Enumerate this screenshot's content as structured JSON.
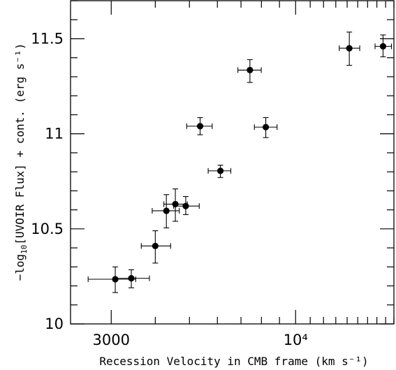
{
  "chart_data": {
    "type": "scatter",
    "title": "",
    "xlabel": "Recession Velocity in CMB frame (km s⁻¹)",
    "ylabel": {
      "prefix": "−log",
      "sub": "10",
      "rest": "[UVOIR Flux] + cont. (erg s⁻¹)"
    },
    "x_scale": "log",
    "xlim": [
      2300,
      19000
    ],
    "ylim": [
      10,
      11.7
    ],
    "x_ticks": [
      {
        "value": 3000,
        "label": "3000"
      },
      {
        "value": 10000,
        "label": "10⁴"
      }
    ],
    "y_ticks": [
      {
        "value": 10,
        "label": "10"
      },
      {
        "value": 10.5,
        "label": "10.5"
      },
      {
        "value": 11,
        "label": "11"
      },
      {
        "value": 11.5,
        "label": "11.5"
      }
    ],
    "points": [
      {
        "x": 3080,
        "xlo": 2580,
        "xhi": 3520,
        "y": 10.235,
        "ylo": 10.165,
        "yhi": 10.3
      },
      {
        "x": 3420,
        "xlo": 3080,
        "xhi": 3850,
        "y": 10.24,
        "ylo": 10.19,
        "yhi": 10.285
      },
      {
        "x": 4000,
        "xlo": 3650,
        "xhi": 4420,
        "y": 10.41,
        "ylo": 10.32,
        "yhi": 10.49
      },
      {
        "x": 4300,
        "xlo": 3920,
        "xhi": 4680,
        "y": 10.595,
        "ylo": 10.505,
        "yhi": 10.68
      },
      {
        "x": 4560,
        "xlo": 4230,
        "xhi": 4930,
        "y": 10.63,
        "ylo": 10.54,
        "yhi": 10.71
      },
      {
        "x": 4880,
        "xlo": 4510,
        "xhi": 5330,
        "y": 10.62,
        "ylo": 10.575,
        "yhi": 10.67
      },
      {
        "x": 5360,
        "xlo": 4910,
        "xhi": 5800,
        "y": 11.04,
        "ylo": 10.995,
        "yhi": 11.085
      },
      {
        "x": 6120,
        "xlo": 5650,
        "xhi": 6550,
        "y": 10.805,
        "ylo": 10.77,
        "yhi": 10.835
      },
      {
        "x": 7420,
        "xlo": 6860,
        "xhi": 7990,
        "y": 11.335,
        "ylo": 11.27,
        "yhi": 11.39
      },
      {
        "x": 8230,
        "xlo": 7640,
        "xhi": 8860,
        "y": 11.035,
        "ylo": 10.98,
        "yhi": 11.085
      },
      {
        "x": 14200,
        "xlo": 13300,
        "xhi": 15200,
        "y": 11.45,
        "ylo": 11.36,
        "yhi": 11.535
      },
      {
        "x": 17700,
        "xlo": 16800,
        "xhi": 18700,
        "y": 11.46,
        "ylo": 11.405,
        "yhi": 11.52
      }
    ]
  }
}
